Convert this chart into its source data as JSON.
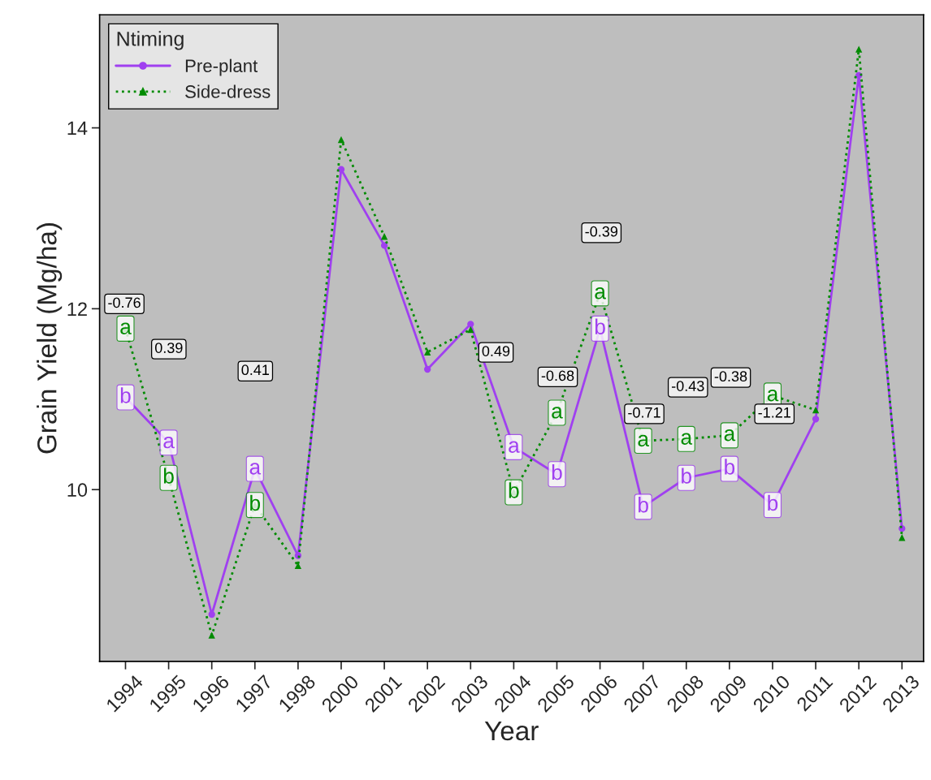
{
  "chart_data": {
    "type": "line",
    "xlabel": "Year",
    "ylabel": "Grain Yield (Mg/ha)",
    "legend_title": "Ntiming",
    "legend": "top left",
    "grid": false,
    "categories": [
      "1994",
      "1995",
      "1996",
      "1997",
      "1998",
      "2000",
      "2001",
      "2002",
      "2003",
      "2004",
      "2005",
      "2006",
      "2007",
      "2008",
      "2009",
      "2010",
      "2011",
      "2012",
      "2013"
    ],
    "ylim": [
      8.1,
      15.25
    ],
    "yticks": [
      10,
      12,
      14
    ],
    "series": [
      {
        "name": "Pre-plant",
        "color": "#a040f0",
        "marker": "circle",
        "line_style": "solid",
        "values": [
          11.02,
          10.52,
          8.62,
          10.23,
          9.27,
          13.54,
          12.7,
          11.33,
          11.83,
          10.47,
          10.17,
          11.78,
          9.81,
          10.13,
          10.23,
          9.83,
          10.78,
          14.58,
          9.57
        ]
      },
      {
        "name": "Side-dress",
        "color": "#008b00",
        "marker": "triangle",
        "line_style": "dotted",
        "values": [
          11.78,
          10.13,
          8.39,
          9.83,
          9.16,
          13.87,
          12.8,
          11.52,
          11.77,
          9.97,
          10.85,
          12.17,
          10.54,
          10.56,
          10.6,
          11.04,
          10.88,
          14.87,
          9.47
        ]
      }
    ],
    "annotations": [
      {
        "text": "b",
        "x": "1994",
        "y": 11.02
      },
      {
        "text": "a",
        "x": "1994",
        "y": 11.78
      },
      {
        "text": "a",
        "x": "1995",
        "y": 10.52
      },
      {
        "text": "b",
        "x": "1995",
        "y": 10.13
      },
      {
        "text": "a",
        "x": "1997",
        "y": 10.23
      },
      {
        "text": "b",
        "x": "1997",
        "y": 9.83
      },
      {
        "text": "a",
        "x": "2004",
        "y": 10.47
      },
      {
        "text": "b",
        "x": "2004",
        "y": 9.97
      },
      {
        "text": "b",
        "x": "2005",
        "y": 10.17
      },
      {
        "text": "a",
        "x": "2005",
        "y": 10.85
      },
      {
        "text": "b",
        "x": "2006",
        "y": 11.78
      },
      {
        "text": "a",
        "x": "2006",
        "y": 12.17
      },
      {
        "text": "b",
        "x": "2007",
        "y": 9.81
      },
      {
        "text": "a",
        "x": "2007",
        "y": 10.54
      },
      {
        "text": "b",
        "x": "2008",
        "y": 10.13
      },
      {
        "text": "a",
        "x": "2008",
        "y": 10.56
      },
      {
        "text": "b",
        "x": "2009",
        "y": 10.23
      },
      {
        "text": "a",
        "x": "2009",
        "y": 10.6
      },
      {
        "text": "b",
        "x": "2010",
        "y": 9.83
      },
      {
        "text": "a",
        "x": "2010",
        "y": 11.04
      },
      "-0.76",
      "0.39",
      "0.41",
      "0.49",
      "-0.68",
      "-0.39",
      "-0.71",
      "-0.43",
      "-0.38",
      "-1.21"
    ]
  }
}
